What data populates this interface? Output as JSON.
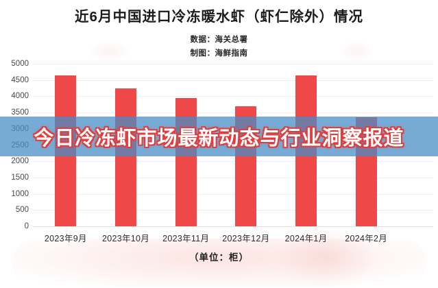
{
  "chart_data": {
    "type": "bar",
    "title": "近6月中国进口冷冻暖水虾（虾仁除外）情况",
    "source_note": "数据：海关总署",
    "author_note": "制图：海鲜指南",
    "categories": [
      "2023年9月",
      "2023年10月",
      "2023年11月",
      "2023年12月",
      "2024年1月",
      "2024年2月"
    ],
    "values": [
      4650,
      4250,
      3950,
      3700,
      4640,
      3350
    ],
    "unit_label": "（单位：柜）",
    "xlabel": "",
    "ylabel": "",
    "ylim": [
      0,
      5000
    ],
    "ytick_step": 500,
    "grid": true,
    "legend": "none",
    "bar_color": "#ef4848"
  },
  "overlay": {
    "headline": "今日冷冻虾市场最新动态与行业洞察报道",
    "band_color": "rgba(72,142,199,0.74)",
    "text_color": "#ffffff",
    "outline_color": "#e23c3c"
  }
}
